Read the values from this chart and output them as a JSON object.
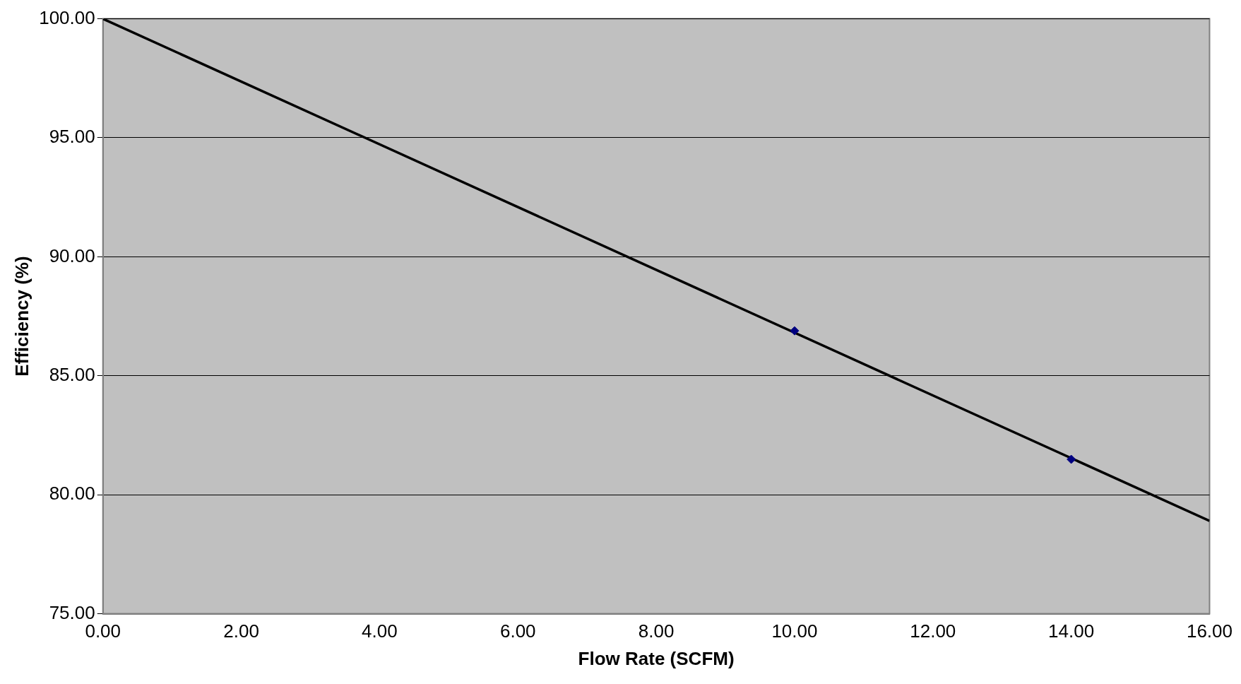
{
  "chart_data": {
    "type": "scatter",
    "xlabel": "Flow Rate (SCFM)",
    "ylabel": "Efficiency (%)",
    "series": [
      {
        "type": "scatter",
        "color": "#000080",
        "marker": "diamond",
        "x": [
          10.0,
          14.0
        ],
        "values": [
          86.89,
          81.49
        ]
      },
      {
        "type": "line",
        "color": "#000000",
        "marker": "none",
        "x": [
          0,
          16
        ],
        "values": [
          100,
          78.9
        ]
      }
    ],
    "xlim": [
      0,
      16
    ],
    "ylim": [
      75,
      100
    ],
    "xticks": [
      {
        "value": 0,
        "label": "0.00"
      },
      {
        "value": 2,
        "label": "2.00"
      },
      {
        "value": 4,
        "label": "4.00"
      },
      {
        "value": 6,
        "label": "6.00"
      },
      {
        "value": 8,
        "label": "8.00"
      },
      {
        "value": 10,
        "label": "10.00"
      },
      {
        "value": 12,
        "label": "12.00"
      },
      {
        "value": 14,
        "label": "14.00"
      },
      {
        "value": 16,
        "label": "16.00"
      }
    ],
    "yticks": [
      {
        "value": 75,
        "label": "75.00"
      },
      {
        "value": 80,
        "label": "80.00"
      },
      {
        "value": 85,
        "label": "85.00"
      },
      {
        "value": 90,
        "label": "90.00"
      },
      {
        "value": 95,
        "label": "95.00"
      },
      {
        "value": 100,
        "label": "100.00"
      }
    ],
    "grid": "y",
    "legend": false
  }
}
